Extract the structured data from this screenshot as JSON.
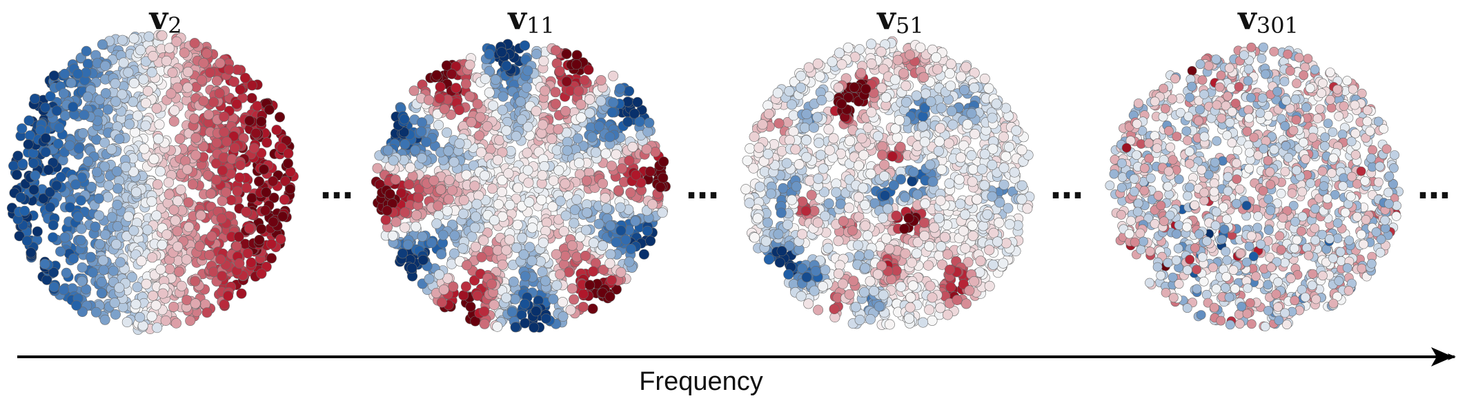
{
  "panels": [
    {
      "id": "v2",
      "title_main": "v",
      "title_sub": "2",
      "pattern": "gradient"
    },
    {
      "id": "v11",
      "title_main": "v",
      "title_sub": "11",
      "pattern": "angular"
    },
    {
      "id": "v51",
      "title_main": "v",
      "title_sub": "51",
      "pattern": "spots"
    },
    {
      "id": "v301",
      "title_main": "v",
      "title_sub": "301",
      "pattern": "noise"
    }
  ],
  "ellipsis": "…",
  "axis": {
    "label": "Frequency"
  },
  "colors": {
    "negative": "#1f5fa8",
    "neutral": "#f7f7f7",
    "positive": "#b2182b",
    "axis": "#000000"
  }
}
